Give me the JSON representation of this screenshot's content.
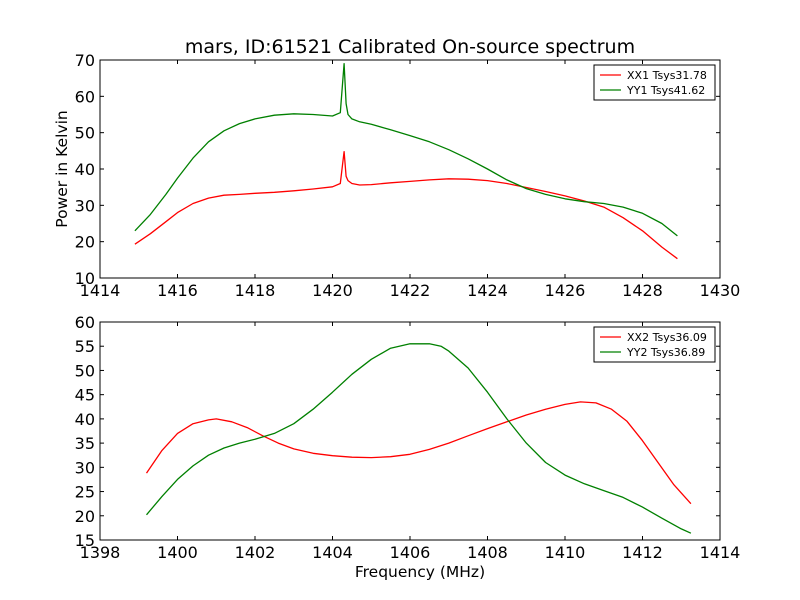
{
  "title": "mars, ID:61521 Calibrated On-source spectrum",
  "colors": {
    "red": "#ff0000",
    "green": "#008000"
  },
  "chart_data": [
    {
      "type": "line",
      "ylabel": "Power in Kelvin",
      "xlabel": "",
      "xlim": [
        1414,
        1430
      ],
      "ylim": [
        10,
        70
      ],
      "xticks": [
        1414,
        1416,
        1418,
        1420,
        1422,
        1424,
        1426,
        1428,
        1430
      ],
      "yticks": [
        10,
        20,
        30,
        40,
        50,
        60,
        70
      ],
      "legend_position": "top-right",
      "series": [
        {
          "name": "XX1 Tsys31.78",
          "color": "#ff0000",
          "x": [
            1414.9,
            1415.3,
            1415.7,
            1416.0,
            1416.4,
            1416.8,
            1417.2,
            1417.6,
            1418.0,
            1418.5,
            1419.0,
            1419.5,
            1420.0,
            1420.2,
            1420.3,
            1420.35,
            1420.4,
            1420.5,
            1420.7,
            1421.0,
            1421.5,
            1422.0,
            1422.5,
            1423.0,
            1423.5,
            1424.0,
            1424.5,
            1425.0,
            1425.5,
            1426.0,
            1426.5,
            1427.0,
            1427.5,
            1428.0,
            1428.5,
            1428.9
          ],
          "y": [
            19.3,
            22.2,
            25.5,
            28.0,
            30.5,
            32.0,
            32.8,
            33.0,
            33.3,
            33.6,
            34.0,
            34.5,
            35.1,
            36.0,
            44.8,
            38.0,
            36.8,
            36.0,
            35.6,
            35.7,
            36.2,
            36.6,
            37.0,
            37.3,
            37.2,
            36.8,
            36.0,
            34.9,
            33.8,
            32.6,
            31.2,
            29.5,
            26.6,
            23.0,
            18.5,
            15.3
          ]
        },
        {
          "name": "YY1 Tsys41.62",
          "color": "#008000",
          "x": [
            1414.9,
            1415.3,
            1415.7,
            1416.0,
            1416.4,
            1416.8,
            1417.2,
            1417.6,
            1418.0,
            1418.5,
            1419.0,
            1419.5,
            1420.0,
            1420.2,
            1420.3,
            1420.35,
            1420.4,
            1420.5,
            1420.7,
            1421.0,
            1421.5,
            1422.0,
            1422.5,
            1423.0,
            1423.5,
            1424.0,
            1424.5,
            1425.0,
            1425.5,
            1426.0,
            1426.5,
            1427.0,
            1427.5,
            1428.0,
            1428.5,
            1428.9
          ],
          "y": [
            23.0,
            27.5,
            33.0,
            37.5,
            43.0,
            47.5,
            50.5,
            52.5,
            53.8,
            54.8,
            55.2,
            55.0,
            54.6,
            55.5,
            69.0,
            58.0,
            55.0,
            53.8,
            53.0,
            52.3,
            50.8,
            49.2,
            47.5,
            45.3,
            42.8,
            40.0,
            37.0,
            34.6,
            33.0,
            31.8,
            31.0,
            30.5,
            29.5,
            27.8,
            25.0,
            21.6
          ]
        }
      ]
    },
    {
      "type": "line",
      "ylabel": "",
      "xlabel": "Frequency (MHz)",
      "xlim": [
        1398,
        1414
      ],
      "ylim": [
        15,
        60
      ],
      "xticks": [
        1398,
        1400,
        1402,
        1404,
        1406,
        1408,
        1410,
        1412,
        1414
      ],
      "yticks": [
        15,
        20,
        25,
        30,
        35,
        40,
        45,
        50,
        55,
        60
      ],
      "legend_position": "top-right",
      "series": [
        {
          "name": "XX2 Tsys36.09",
          "color": "#ff0000",
          "x": [
            1399.2,
            1399.6,
            1400.0,
            1400.4,
            1400.8,
            1401.0,
            1401.4,
            1401.8,
            1402.2,
            1402.6,
            1403.0,
            1403.5,
            1404.0,
            1404.5,
            1405.0,
            1405.5,
            1406.0,
            1406.5,
            1407.0,
            1407.5,
            1408.0,
            1408.5,
            1409.0,
            1409.5,
            1410.0,
            1410.4,
            1410.8,
            1411.2,
            1411.6,
            1412.0,
            1412.4,
            1412.8,
            1413.25
          ],
          "y": [
            28.8,
            33.5,
            37.0,
            39.0,
            39.8,
            40.0,
            39.4,
            38.2,
            36.5,
            35.0,
            33.8,
            32.9,
            32.4,
            32.1,
            32.0,
            32.2,
            32.7,
            33.7,
            35.0,
            36.5,
            38.0,
            39.4,
            40.8,
            42.0,
            43.0,
            43.5,
            43.3,
            42.0,
            39.5,
            35.5,
            31.0,
            26.5,
            22.5
          ]
        },
        {
          "name": "YY2 Tsys36.89",
          "color": "#008000",
          "x": [
            1399.2,
            1399.6,
            1400.0,
            1400.4,
            1400.8,
            1401.2,
            1401.6,
            1402.0,
            1402.5,
            1403.0,
            1403.5,
            1404.0,
            1404.5,
            1405.0,
            1405.5,
            1406.0,
            1406.5,
            1406.8,
            1407.0,
            1407.5,
            1408.0,
            1408.5,
            1409.0,
            1409.5,
            1410.0,
            1410.5,
            1411.0,
            1411.5,
            1412.0,
            1412.5,
            1413.0,
            1413.25
          ],
          "y": [
            20.2,
            24.0,
            27.5,
            30.3,
            32.5,
            34.0,
            35.0,
            35.8,
            37.0,
            39.0,
            42.0,
            45.5,
            49.2,
            52.3,
            54.6,
            55.5,
            55.5,
            55.0,
            54.0,
            50.5,
            45.5,
            40.0,
            35.0,
            31.0,
            28.4,
            26.6,
            25.2,
            23.8,
            21.8,
            19.5,
            17.3,
            16.4
          ]
        }
      ]
    }
  ]
}
